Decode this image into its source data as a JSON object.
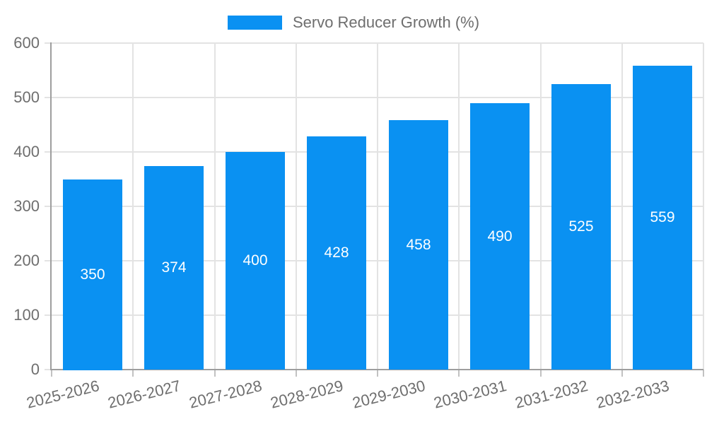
{
  "chart_data": {
    "type": "bar",
    "title": "Servo Reducer Growth (%)",
    "legend": [
      "Servo Reducer Growth (%)"
    ],
    "legend_position": "top-center",
    "categories": [
      "2025-2026",
      "2026-2027",
      "2027-2028",
      "2028-2029",
      "2029-2030",
      "2030-2031",
      "2031-2032",
      "2032-2033"
    ],
    "series": [
      {
        "name": "Servo Reducer Growth (%)",
        "values": [
          350,
          374,
          400,
          428,
          458,
          490,
          525,
          559
        ]
      }
    ],
    "xlabel": "",
    "ylabel": "",
    "ylim": [
      0,
      600
    ],
    "yticks": [
      0,
      100,
      200,
      300,
      400,
      500,
      600
    ],
    "grid": true,
    "x_label_rotation_deg": 14,
    "bar_color": "#0a91f2",
    "bar_label_color": "#ffffff",
    "grid_color": "#e3e3e3",
    "axis_color": "#9e9e9e",
    "tick_mark_color": "#c2c2c2",
    "text_color": "#6e6e6e",
    "background_color": "#ffffff"
  }
}
